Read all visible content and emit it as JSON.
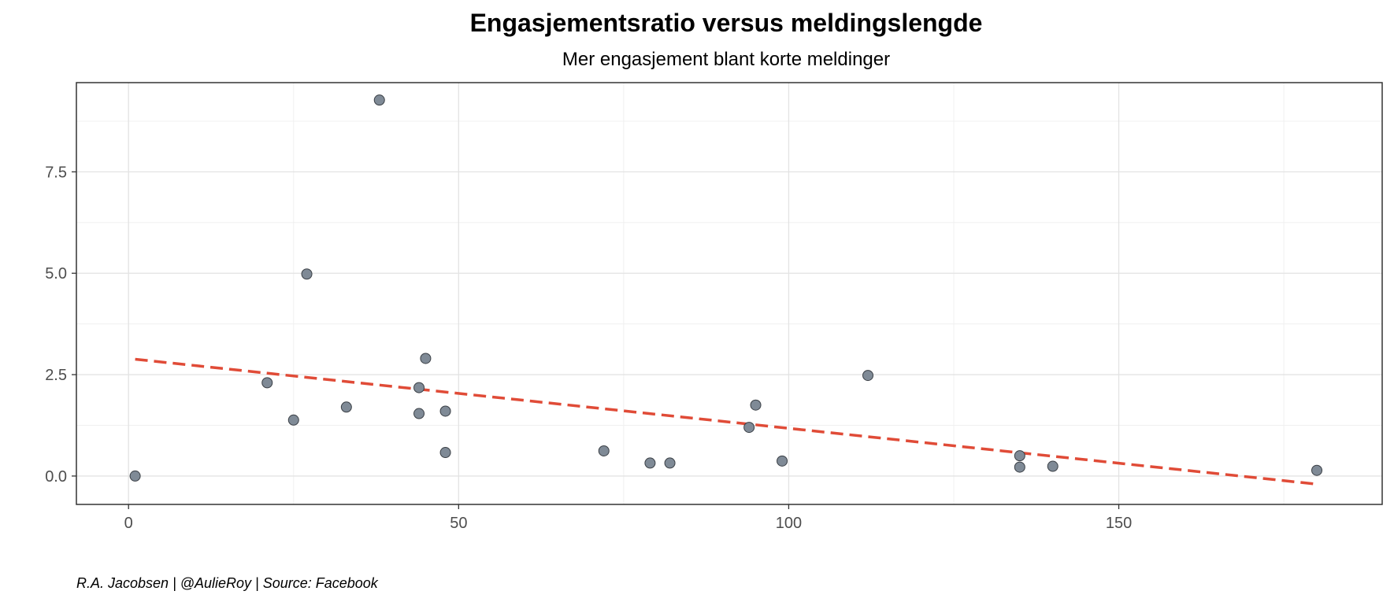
{
  "chart_data": {
    "type": "scatter",
    "title": "Engasjementsratio versus meldingslengde",
    "subtitle": "Mer engasjement blant korte meldinger",
    "caption": "R.A. Jacobsen | @AulieRoy | Source: Facebook",
    "xlabel": "",
    "ylabel": "",
    "xlim": [
      -7.9,
      189.9
    ],
    "ylim": [
      -0.7,
      9.7
    ],
    "x_ticks": [
      0,
      50,
      100,
      150
    ],
    "x_tick_labels": [
      "0",
      "50",
      "100",
      "150"
    ],
    "x_minor_ticks": [
      25,
      75,
      125,
      175
    ],
    "y_ticks": [
      0,
      2.5,
      5,
      7.5
    ],
    "y_tick_labels": [
      "0.0",
      "2.5",
      "5.0",
      "7.5"
    ],
    "y_minor_ticks": [
      1.25,
      3.75,
      6.25,
      8.75
    ],
    "grid": true,
    "point_color": "#7f8a96",
    "point_stroke": "#3a3f45",
    "trend_color": "#e04b37",
    "points": [
      {
        "x": 1,
        "y": 0.0
      },
      {
        "x": 21,
        "y": 2.3
      },
      {
        "x": 25,
        "y": 1.38
      },
      {
        "x": 27,
        "y": 4.98
      },
      {
        "x": 33,
        "y": 1.7
      },
      {
        "x": 38,
        "y": 9.27
      },
      {
        "x": 44,
        "y": 2.18
      },
      {
        "x": 44,
        "y": 1.54
      },
      {
        "x": 45,
        "y": 2.9
      },
      {
        "x": 48,
        "y": 1.6
      },
      {
        "x": 48,
        "y": 0.58
      },
      {
        "x": 72,
        "y": 0.62
      },
      {
        "x": 79,
        "y": 0.32
      },
      {
        "x": 82,
        "y": 0.32
      },
      {
        "x": 94,
        "y": 1.2
      },
      {
        "x": 95,
        "y": 1.75
      },
      {
        "x": 99,
        "y": 0.37
      },
      {
        "x": 112,
        "y": 2.48
      },
      {
        "x": 135,
        "y": 0.5
      },
      {
        "x": 135,
        "y": 0.22
      },
      {
        "x": 140,
        "y": 0.24
      },
      {
        "x": 180,
        "y": 0.14
      }
    ],
    "trend": {
      "type": "linear",
      "x": [
        1,
        180
      ],
      "y": [
        2.88,
        -0.2
      ]
    }
  }
}
